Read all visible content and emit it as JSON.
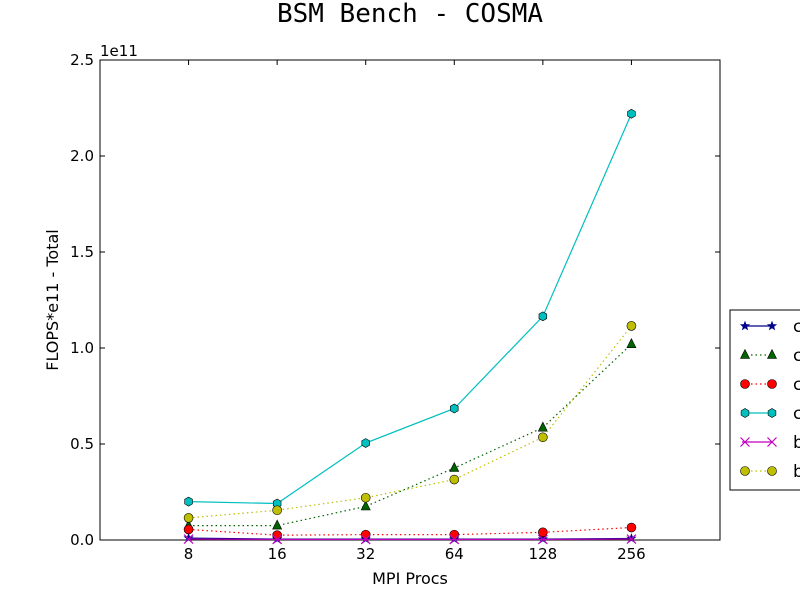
{
  "chart_data": {
    "type": "line",
    "title": "BSM Bench - COSMA",
    "xlabel": "MPI Procs",
    "ylabel": "FLOPS*e11 - Total",
    "y_offset_label": "1e11",
    "categories": [
      "8",
      "16",
      "32",
      "64",
      "128",
      "256"
    ],
    "y_scale": 100000000000.0,
    "ylim": [
      0,
      2.5
    ],
    "yticks": [
      0.0,
      0.5,
      1.0,
      1.5,
      2.0,
      2.5
    ],
    "ytick_labels": [
      "0.0",
      "0.5",
      "1.0",
      "1.5",
      "2.0",
      "2.5"
    ],
    "grid": false,
    "legend_position": "right, partially outside plot (clipped)",
    "series": [
      {
        "legend_label": "c",
        "color": "#00008b",
        "marker": "star",
        "linestyle": "solid",
        "values": [
          0.01,
          0.005,
          0.005,
          0.005,
          0.005,
          0.008
        ]
      },
      {
        "legend_label": "c",
        "color": "#006400",
        "marker": "triangle",
        "linestyle": "dotted",
        "values": [
          0.075,
          0.075,
          0.175,
          0.375,
          0.585,
          1.02
        ]
      },
      {
        "legend_label": "c",
        "color": "#ff0000",
        "marker": "circle",
        "linestyle": "dotted",
        "values": [
          0.055,
          0.025,
          0.028,
          0.028,
          0.04,
          0.065
        ]
      },
      {
        "legend_label": "c",
        "color": "#00bfbf",
        "marker": "hexagon",
        "linestyle": "solid",
        "values": [
          0.2,
          0.19,
          0.505,
          0.685,
          1.165,
          2.22
        ]
      },
      {
        "legend_label": "b",
        "color": "#bf00bf",
        "marker": "x",
        "linestyle": "solid",
        "values": [
          0.005,
          0.003,
          0.003,
          0.003,
          0.003,
          0.005
        ]
      },
      {
        "legend_label": "b",
        "color": "#bfbf00",
        "marker": "circle",
        "linestyle": "dotted",
        "values": [
          0.115,
          0.155,
          0.22,
          0.315,
          0.535,
          1.115
        ]
      }
    ]
  }
}
